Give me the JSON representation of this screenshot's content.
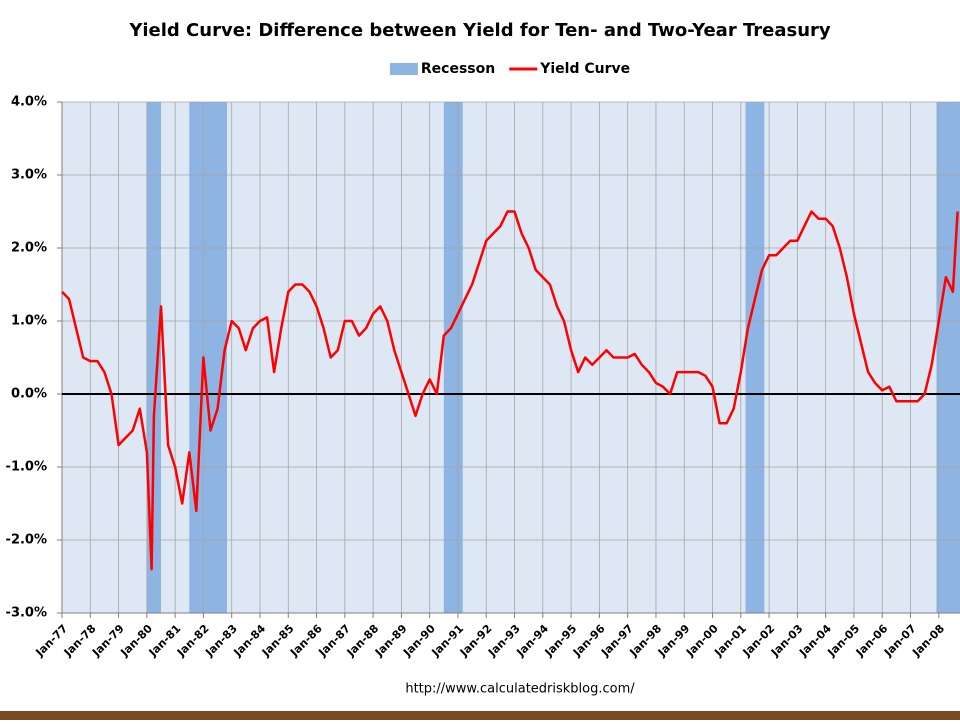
{
  "chart_data": {
    "type": "line",
    "title": "Yield Curve: Difference between Yield for Ten- and Two-Year Treasury",
    "source": "http://www.calculatedriskblog.com/",
    "xlim": [
      "Jan-77",
      "Oct-08"
    ],
    "ylim": [
      -3,
      4
    ],
    "yticks": [
      {
        "value": -3,
        "label": "-3.0%"
      },
      {
        "value": -2,
        "label": "-2.0%"
      },
      {
        "value": -1,
        "label": "-1.0%"
      },
      {
        "value": 0,
        "label": "0.0%"
      },
      {
        "value": 1,
        "label": "1.0%"
      },
      {
        "value": 2,
        "label": "2.0%"
      },
      {
        "value": 3,
        "label": "3.0%"
      },
      {
        "value": 4,
        "label": "4.0%"
      }
    ],
    "xticks": [
      "Jan-77",
      "Jan-78",
      "Jan-79",
      "Jan-80",
      "Jan-81",
      "Jan-82",
      "Jan-83",
      "Jan-84",
      "Jan-85",
      "Jan-86",
      "Jan-87",
      "Jan-88",
      "Jan-89",
      "Jan-90",
      "Jan-91",
      "Jan-92",
      "Jan-93",
      "Jan-94",
      "Jan-95",
      "Jan-96",
      "Jan-97",
      "Jan-98",
      "Jan-99",
      "Jan-00",
      "Jan-01",
      "Jan-02",
      "Jan-03",
      "Jan-04",
      "Jan-05",
      "Jan-06",
      "Jan-07",
      "Jan-08"
    ],
    "grid": true,
    "zero_line": true,
    "bands": [
      {
        "name": "Recesson",
        "color": "#8db4e2",
        "periods": [
          [
            "Jan-80",
            "Jul-80"
          ],
          [
            "Jul-81",
            "Nov-82"
          ],
          [
            "Jul-90",
            "Mar-91"
          ],
          [
            "Mar-01",
            "Nov-01"
          ],
          [
            "Dec-07",
            "Oct-08"
          ]
        ]
      }
    ],
    "x": [
      "Jan-77",
      "Apr-77",
      "Jul-77",
      "Oct-77",
      "Jan-78",
      "Apr-78",
      "Jul-78",
      "Oct-78",
      "Jan-79",
      "Apr-79",
      "Jul-79",
      "Oct-79",
      "Jan-80",
      "Mar-80",
      "Apr-80",
      "Jul-80",
      "Oct-80",
      "Jan-81",
      "Apr-81",
      "Jul-81",
      "Oct-81",
      "Jan-82",
      "Apr-82",
      "Jul-82",
      "Oct-82",
      "Jan-83",
      "Apr-83",
      "Jul-83",
      "Oct-83",
      "Jan-84",
      "Apr-84",
      "Jul-84",
      "Oct-84",
      "Jan-85",
      "Apr-85",
      "Jul-85",
      "Oct-85",
      "Jan-86",
      "Apr-86",
      "Jul-86",
      "Oct-86",
      "Jan-87",
      "Apr-87",
      "Jul-87",
      "Oct-87",
      "Jan-88",
      "Apr-88",
      "Jul-88",
      "Oct-88",
      "Jan-89",
      "Apr-89",
      "Jul-89",
      "Oct-89",
      "Jan-90",
      "Apr-90",
      "Jul-90",
      "Oct-90",
      "Jan-91",
      "Apr-91",
      "Jul-91",
      "Oct-91",
      "Jan-92",
      "Apr-92",
      "Jul-92",
      "Oct-92",
      "Jan-93",
      "Apr-93",
      "Jul-93",
      "Oct-93",
      "Jan-94",
      "Apr-94",
      "Jul-94",
      "Oct-94",
      "Jan-95",
      "Apr-95",
      "Jul-95",
      "Oct-95",
      "Jan-96",
      "Apr-96",
      "Jul-96",
      "Oct-96",
      "Jan-97",
      "Apr-97",
      "Jul-97",
      "Oct-97",
      "Jan-98",
      "Apr-98",
      "Jul-98",
      "Oct-98",
      "Jan-99",
      "Apr-99",
      "Jul-99",
      "Oct-99",
      "Jan-00",
      "Apr-00",
      "Jul-00",
      "Oct-00",
      "Jan-01",
      "Apr-01",
      "Jul-01",
      "Oct-01",
      "Jan-02",
      "Apr-02",
      "Jul-02",
      "Oct-02",
      "Jan-03",
      "Apr-03",
      "Jul-03",
      "Oct-03",
      "Jan-04",
      "Apr-04",
      "Jul-04",
      "Oct-04",
      "Jan-05",
      "Apr-05",
      "Jul-05",
      "Oct-05",
      "Jan-06",
      "Apr-06",
      "Jul-06",
      "Oct-06",
      "Jan-07",
      "Apr-07",
      "Jul-07",
      "Oct-07",
      "Jan-08",
      "Apr-08",
      "Jul-08",
      "Sep-08"
    ],
    "series": [
      {
        "name": "Yield Curve",
        "color": "#ff0000",
        "values": [
          1.4,
          1.3,
          0.9,
          0.5,
          0.45,
          0.45,
          0.3,
          0.0,
          -0.7,
          -0.6,
          -0.5,
          -0.2,
          -0.8,
          -2.4,
          -0.3,
          1.2,
          -0.7,
          -1.0,
          -1.5,
          -0.8,
          -1.6,
          0.5,
          -0.5,
          -0.2,
          0.6,
          1.0,
          0.9,
          0.6,
          0.9,
          1.0,
          1.05,
          0.3,
          0.9,
          1.4,
          1.5,
          1.5,
          1.4,
          1.2,
          0.9,
          0.5,
          0.6,
          1.0,
          1.0,
          0.8,
          0.9,
          1.1,
          1.2,
          1.0,
          0.6,
          0.3,
          0.0,
          -0.3,
          0.0,
          0.2,
          0.0,
          0.8,
          0.9,
          1.1,
          1.3,
          1.5,
          1.8,
          2.1,
          2.2,
          2.3,
          2.5,
          2.5,
          2.2,
          2.0,
          1.7,
          1.6,
          1.5,
          1.2,
          1.0,
          0.6,
          0.3,
          0.5,
          0.4,
          0.5,
          0.6,
          0.5,
          0.5,
          0.5,
          0.55,
          0.4,
          0.3,
          0.15,
          0.1,
          0.0,
          0.3,
          0.3,
          0.3,
          0.3,
          0.25,
          0.1,
          -0.4,
          -0.4,
          -0.2,
          0.3,
          0.9,
          1.3,
          1.7,
          1.9,
          1.9,
          2.0,
          2.1,
          2.1,
          2.3,
          2.5,
          2.4,
          2.4,
          2.3,
          2.0,
          1.6,
          1.1,
          0.7,
          0.3,
          0.15,
          0.05,
          0.1,
          -0.1,
          -0.1,
          -0.1,
          -0.1,
          0.0,
          0.4,
          1.0,
          1.6,
          1.4,
          2.5
        ]
      }
    ]
  }
}
